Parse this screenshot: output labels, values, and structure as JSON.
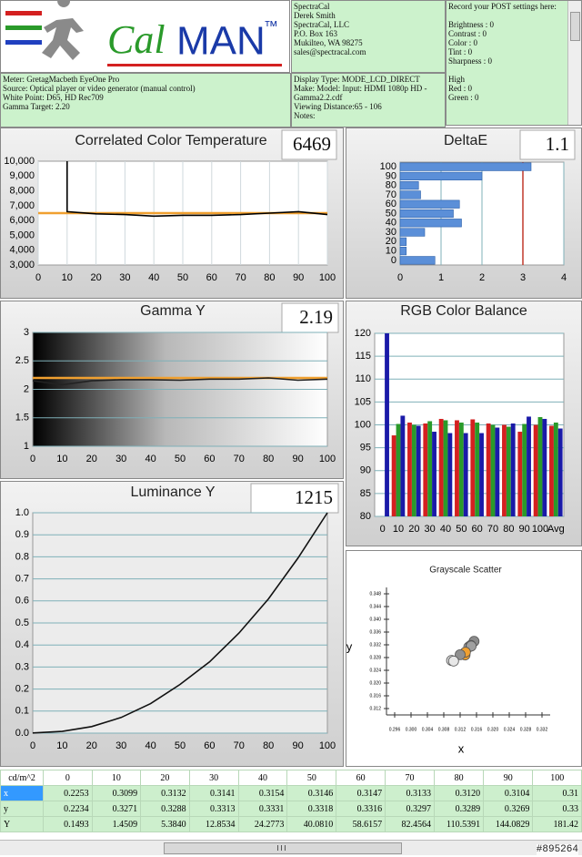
{
  "logo": {
    "parts": [
      "Cal",
      "MAN",
      "™"
    ]
  },
  "header": {
    "company": [
      "SpectraCal",
      "Derek Smith",
      "SpectraCal, LLC",
      "P.O. Box 163",
      "Mukilteo, WA 98275",
      "sales@spectracal.com"
    ],
    "settings_title": "Record your POST settings here:",
    "settings": [
      "Brightness : 0",
      "Contrast : 0",
      "Color : 0",
      "Tint : 0",
      "Sharpness : 0"
    ],
    "high_title": "High",
    "high": [
      "Red : 0",
      "Green : 0"
    ],
    "meter": [
      "Meter: GretagMacbeth EyeOne Pro",
      "Source: Optical player or video generator (manual control)",
      "White Point: D65, HD Rec709",
      "Gamma Target: 2.20"
    ],
    "display": [
      "Display Type: MODE_LCD_DIRECT",
      "Make: Model: Input: HDMI 1080p HD - Gamma2.2.cdf",
      "Viewing Distance:65 - 106",
      "Notes:"
    ]
  },
  "chart_data": [
    {
      "type": "line",
      "title": "Correlated Color Temperature",
      "readout": "6469",
      "x": [
        10,
        10,
        20,
        30,
        40,
        50,
        60,
        70,
        80,
        90,
        100
      ],
      "series": [
        {
          "color": "#000000",
          "values": [
            10000,
            6600,
            6450,
            6400,
            6300,
            6350,
            6350,
            6400,
            6500,
            6600,
            6400
          ]
        }
      ],
      "target": {
        "value": 6500,
        "color": "#f0a030"
      },
      "xlim": [
        0,
        100
      ],
      "xticks": [
        0,
        10,
        20,
        30,
        40,
        50,
        60,
        70,
        80,
        90,
        100
      ],
      "ylim": [
        3000,
        10000
      ],
      "yticks": [
        {
          "value": 3000,
          "label": "3,000"
        },
        {
          "value": 4000,
          "label": "4,000"
        },
        {
          "value": 5000,
          "label": "5,000"
        },
        {
          "value": 6000,
          "label": "6,000"
        },
        {
          "value": 7000,
          "label": "7,000"
        },
        {
          "value": 8000,
          "label": "8,000"
        },
        {
          "value": 9000,
          "label": "9,000"
        },
        {
          "value": 10000,
          "label": "10,000"
        }
      ],
      "grid": "x"
    },
    {
      "type": "barh",
      "title": "DeltaE",
      "readout": "1.1",
      "categories": [
        "0",
        "10",
        "20",
        "30",
        "40",
        "50",
        "60",
        "70",
        "80",
        "90",
        "100"
      ],
      "values": [
        0.85,
        0.15,
        0.15,
        0.6,
        1.5,
        1.3,
        1.45,
        0.5,
        0.45,
        2.0,
        3.2
      ],
      "color": "#5b8fd8",
      "xlim": [
        0,
        4
      ],
      "xticks": [
        0,
        1,
        2,
        3,
        4
      ],
      "limit": {
        "value": 3,
        "color": "#c0392b"
      },
      "grid": "x"
    },
    {
      "type": "line",
      "title": "Gamma Y",
      "readout": "2.19",
      "x": [
        0,
        10,
        20,
        30,
        40,
        50,
        60,
        70,
        80,
        90,
        100
      ],
      "series": [
        {
          "color": "#222222",
          "values": [
            2.15,
            2.08,
            2.15,
            2.17,
            2.17,
            2.16,
            2.18,
            2.18,
            2.2,
            2.16,
            2.18
          ]
        }
      ],
      "target": {
        "value": 2.2,
        "color": "#f0a030"
      },
      "xlim": [
        0,
        100
      ],
      "xticks": [
        0,
        10,
        20,
        30,
        40,
        50,
        60,
        70,
        80,
        90,
        100
      ],
      "ylim": [
        1,
        3
      ],
      "yticks": [
        1,
        1.5,
        2,
        2.5,
        3
      ],
      "grid": "y"
    },
    {
      "type": "bar",
      "title": "RGB Color Balance",
      "categories": [
        "0",
        "10",
        "20",
        "30",
        "40",
        "50",
        "60",
        "70",
        "80",
        "90",
        "100",
        "Avg"
      ],
      "series": [
        {
          "color": "#d42020",
          "values": [
            null,
            97.7,
            100.5,
            100.3,
            101.3,
            101,
            101.2,
            100.3,
            100,
            98.5,
            100,
            99.8
          ]
        },
        {
          "color": "#2a9a2a",
          "values": [
            null,
            100.2,
            100,
            100.8,
            101,
            100.5,
            100.5,
            100,
            99.6,
            100.2,
            101.7,
            100.5
          ]
        },
        {
          "color": "#1a1aa8",
          "values": [
            120,
            102,
            99.8,
            98.5,
            98.2,
            98.2,
            98.2,
            99.4,
            100.3,
            101.8,
            101.3,
            99.2
          ]
        }
      ],
      "ylim": [
        80,
        120
      ],
      "yticks": [
        80,
        85,
        90,
        95,
        100,
        105,
        110,
        115,
        120
      ],
      "grid": "y"
    },
    {
      "type": "line",
      "title": "Luminance Y",
      "readout": "1215",
      "x": [
        0,
        10,
        20,
        30,
        40,
        50,
        60,
        70,
        80,
        90,
        100
      ],
      "series": [
        {
          "color": "#111111",
          "values": [
            0.0008,
            0.008,
            0.0297,
            0.0709,
            0.1337,
            0.221,
            0.323,
            0.454,
            0.609,
            0.794,
            1.0
          ]
        }
      ],
      "xlim": [
        0,
        100
      ],
      "xticks": [
        0,
        10,
        20,
        30,
        40,
        50,
        60,
        70,
        80,
        90,
        100
      ],
      "ylim": [
        0,
        1
      ],
      "yticks": [
        {
          "value": 0,
          "label": "0.0"
        },
        0.1,
        0.2,
        0.3,
        0.4,
        0.5,
        0.6,
        0.7,
        0.8,
        0.9,
        {
          "value": 1,
          "label": "1.0"
        }
      ],
      "grid": "y"
    },
    {
      "type": "scatter",
      "title": "Grayscale Scatter",
      "xlabel": "x",
      "ylabel": "y",
      "x": [
        0.3099,
        0.3132,
        0.3141,
        0.3154,
        0.3146,
        0.3147,
        0.3133,
        0.312,
        0.3104
      ],
      "values": [
        0.3271,
        0.3288,
        0.3313,
        0.3331,
        0.3318,
        0.3316,
        0.3297,
        0.3289,
        0.3269
      ],
      "colors": [
        "#e0e0e0",
        "#f0a030",
        "#b0b0b0",
        "#8a8a8a",
        "#c8c8c8",
        "#a0a0a0",
        "#f0a030",
        "#909090",
        "#e8e8e8"
      ],
      "xlim": [
        0.294,
        0.334
      ],
      "xticks": [
        0.296,
        {
          "value": 0.3,
          "label": "0.300"
        },
        0.304,
        0.308,
        0.312,
        0.316,
        {
          "value": 0.32,
          "label": "0.320"
        },
        0.324,
        0.328,
        0.332
      ],
      "ylim": [
        0.31,
        0.35
      ],
      "yticks": [
        0.312,
        0.316,
        {
          "value": 0.32,
          "label": "0.320"
        },
        0.324,
        0.328,
        0.332,
        0.336,
        {
          "value": 0.34,
          "label": "0.340"
        },
        0.344,
        0.348
      ]
    }
  ],
  "table": {
    "header": [
      "cd/m^2",
      "0",
      "10",
      "20",
      "30",
      "40",
      "50",
      "60",
      "70",
      "80",
      "90",
      "100"
    ],
    "rows": [
      [
        "x",
        "0.2253",
        "0.3099",
        "0.3132",
        "0.3141",
        "0.3154",
        "0.3146",
        "0.3147",
        "0.3133",
        "0.3120",
        "0.3104",
        "0.31"
      ],
      [
        "y",
        "0.2234",
        "0.3271",
        "0.3288",
        "0.3313",
        "0.3331",
        "0.3318",
        "0.3316",
        "0.3297",
        "0.3289",
        "0.3269",
        "0.33"
      ],
      [
        "Y",
        "0.1493",
        "1.4509",
        "5.3840",
        "12.8534",
        "24.2773",
        "40.0810",
        "58.6157",
        "82.4564",
        "110.5391",
        "144.0829",
        "181.42"
      ]
    ]
  },
  "watermark": "#895264"
}
